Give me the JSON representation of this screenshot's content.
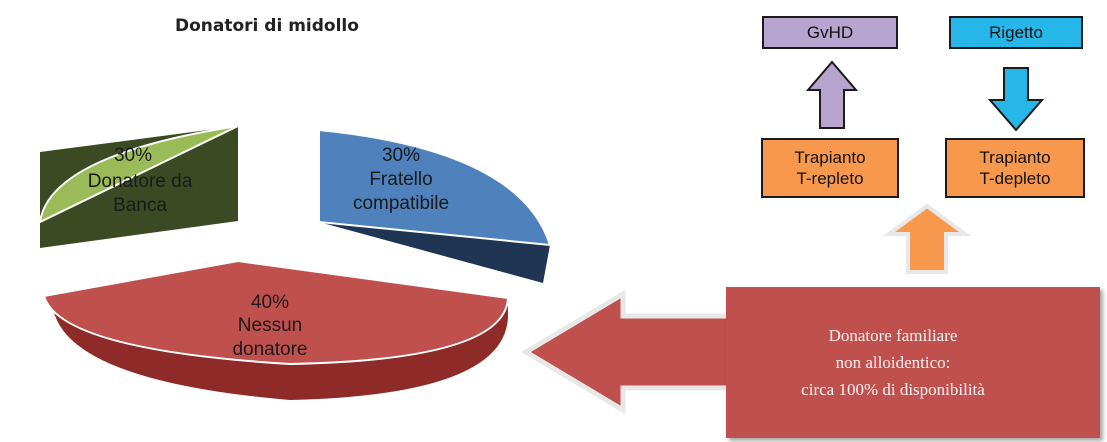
{
  "chart_data": {
    "type": "pie",
    "title": "Donatori di midollo",
    "slices": [
      {
        "label_pct": "30%",
        "label_lines": [
          "Donatore da",
          "Banca"
        ],
        "value": 30,
        "color": "#9bbb59",
        "side_color": "#3c4a23"
      },
      {
        "label_pct": "30%",
        "label_lines": [
          "Fratello",
          "compatibile"
        ],
        "value": 30,
        "color": "#4f81bd",
        "side_color": "#1f3553"
      },
      {
        "label_pct": "40%",
        "label_lines": [
          "Nessun",
          "donatore"
        ],
        "value": 40,
        "color": "#c0504d",
        "side_color": "#8e2b29"
      }
    ]
  },
  "diagram": {
    "gvhd": "GvHD",
    "rigetto": "Rigetto",
    "repleto": [
      "Trapianto",
      "T-repleto"
    ],
    "depleto": [
      "Trapianto",
      "T-depleto"
    ],
    "arrow_colors": {
      "gvhd": "#b7a4cf",
      "rigetto": "#27b6e8",
      "up": "#f8984c",
      "left": "#c0504d"
    }
  },
  "donor_box": {
    "lines": [
      "Donatore familiare",
      "non alloidentico:",
      "circa 100% di disponibilità"
    ]
  }
}
